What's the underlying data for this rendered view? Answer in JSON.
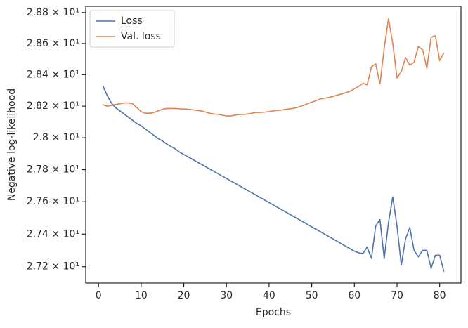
{
  "chart_data": {
    "type": "line",
    "xlabel": "Epochs",
    "ylabel": "Negative log-likelihood",
    "x": [
      1,
      2,
      3,
      4,
      5,
      6,
      7,
      8,
      9,
      10,
      11,
      12,
      13,
      14,
      15,
      16,
      17,
      18,
      19,
      20,
      21,
      22,
      23,
      24,
      25,
      26,
      27,
      28,
      29,
      30,
      31,
      32,
      33,
      34,
      35,
      36,
      37,
      38,
      39,
      40,
      41,
      42,
      43,
      44,
      45,
      46,
      47,
      48,
      49,
      50,
      51,
      52,
      53,
      54,
      55,
      56,
      57,
      58,
      59,
      60,
      61,
      62,
      63,
      64,
      65,
      66,
      67,
      68,
      69,
      70,
      71,
      72,
      73,
      74,
      75,
      76,
      77,
      78,
      79,
      80,
      81
    ],
    "series": [
      {
        "name": "Loss",
        "color": "#4c72b0",
        "values": [
          28.33,
          28.27,
          28.22,
          28.19,
          28.17,
          28.15,
          28.13,
          28.11,
          28.09,
          28.075,
          28.055,
          28.035,
          28.015,
          27.995,
          27.98,
          27.96,
          27.945,
          27.93,
          27.91,
          27.895,
          27.88,
          27.865,
          27.85,
          27.835,
          27.82,
          27.805,
          27.79,
          27.775,
          27.76,
          27.745,
          27.73,
          27.715,
          27.7,
          27.685,
          27.67,
          27.655,
          27.64,
          27.625,
          27.61,
          27.595,
          27.58,
          27.565,
          27.55,
          27.535,
          27.52,
          27.505,
          27.49,
          27.475,
          27.46,
          27.445,
          27.43,
          27.415,
          27.4,
          27.385,
          27.37,
          27.355,
          27.34,
          27.325,
          27.31,
          27.295,
          27.285,
          27.28,
          27.32,
          27.25,
          27.45,
          27.49,
          27.25,
          27.47,
          27.63,
          27.45,
          27.21,
          27.37,
          27.44,
          27.3,
          27.26,
          27.3,
          27.3,
          27.19,
          27.27,
          27.27,
          27.17
        ]
      },
      {
        "name": "Val. loss",
        "color": "#dd8452",
        "values": [
          28.21,
          28.2,
          28.205,
          28.21,
          28.215,
          28.22,
          28.22,
          28.215,
          28.19,
          28.165,
          28.155,
          28.155,
          28.16,
          28.17,
          28.18,
          28.185,
          28.185,
          28.185,
          28.183,
          28.182,
          28.18,
          28.177,
          28.173,
          28.17,
          28.163,
          28.155,
          28.15,
          28.148,
          28.143,
          28.138,
          28.138,
          28.143,
          28.147,
          28.147,
          28.15,
          28.155,
          28.16,
          28.16,
          28.162,
          28.165,
          28.17,
          28.173,
          28.175,
          28.18,
          28.183,
          28.188,
          28.195,
          28.205,
          28.215,
          28.225,
          28.235,
          28.245,
          28.25,
          28.255,
          28.262,
          28.27,
          28.277,
          28.285,
          28.295,
          28.31,
          28.325,
          28.345,
          28.335,
          28.45,
          28.47,
          28.34,
          28.57,
          28.76,
          28.6,
          28.38,
          28.42,
          28.51,
          28.46,
          28.48,
          28.58,
          28.56,
          28.44,
          28.64,
          28.65,
          28.49,
          28.54
        ]
      }
    ],
    "xlim": [
      -3,
      85
    ],
    "xticks": [
      0,
      10,
      20,
      30,
      40,
      50,
      60,
      70,
      80
    ],
    "ylim": [
      27.1,
      28.84
    ],
    "ylog": true,
    "yticks": [
      {
        "value": 27.2,
        "label": "2.72 × 10¹"
      },
      {
        "value": 27.4,
        "label": "2.74 × 10¹"
      },
      {
        "value": 27.6,
        "label": "2.76 × 10¹"
      },
      {
        "value": 27.8,
        "label": "2.78 × 10¹"
      },
      {
        "value": 28.0,
        "label": "2.8 × 10¹"
      },
      {
        "value": 28.2,
        "label": "2.82 × 10¹"
      },
      {
        "value": 28.4,
        "label": "2.84 × 10¹"
      },
      {
        "value": 28.6,
        "label": "2.86 × 10¹"
      },
      {
        "value": 28.8,
        "label": "2.88 × 10¹"
      }
    ],
    "legend": "upper left",
    "grid": false
  }
}
